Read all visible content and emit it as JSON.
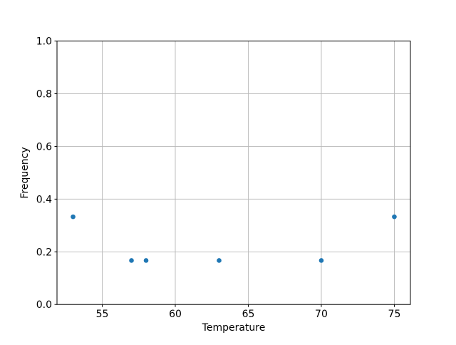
{
  "chart_data": {
    "type": "scatter",
    "title": "",
    "xlabel": "Temperature",
    "ylabel": "Frequency",
    "x": [
      53,
      57,
      58,
      63,
      70,
      75
    ],
    "y": [
      0.333,
      0.167,
      0.167,
      0.167,
      0.167,
      0.333
    ],
    "xlim": [
      51.9,
      76.1
    ],
    "ylim": [
      0.0,
      1.0
    ],
    "xticks": [
      55,
      60,
      65,
      70,
      75
    ],
    "xtick_labels": [
      "55",
      "60",
      "65",
      "70",
      "75"
    ],
    "yticks": [
      0.0,
      0.2,
      0.4,
      0.6,
      0.8,
      1.0
    ],
    "ytick_labels": [
      "0.0",
      "0.2",
      "0.4",
      "0.6",
      "0.8",
      "1.0"
    ],
    "grid": true,
    "legend": null,
    "marker_color": "#1f77b4",
    "grid_color": "#b8b8b8",
    "spine_color": "#000000",
    "background": "#ffffff"
  }
}
